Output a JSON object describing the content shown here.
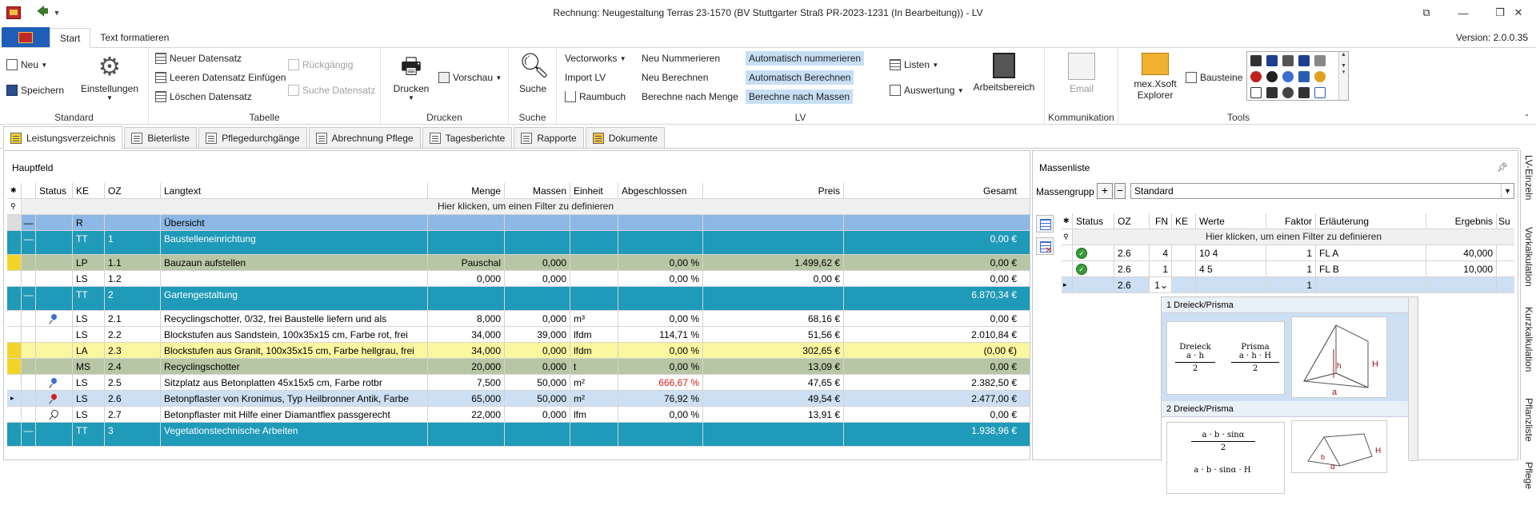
{
  "window": {
    "title": "Rechnung: Neugestaltung Terras 23-1570 (BV Stuttgarter Straß PR-2023-1231 (In Bearbeitung)) - LV",
    "version": "Version: 2.0.0.35"
  },
  "ribbon": {
    "tabs": [
      "Start",
      "Text formatieren"
    ],
    "groups": {
      "standard": {
        "label": "Standard",
        "neu": "Neu",
        "speichern": "Speichern",
        "einstellungen": "Einstellungen"
      },
      "tabelle": {
        "label": "Tabelle",
        "neuer": "Neuer Datensatz",
        "leeren": "Leeren Datensatz Einfügen",
        "loeschen": "Löschen Datensatz",
        "rueckgaengig": "Rückgängig",
        "suche_ds": "Suche Datensatz"
      },
      "drucken": {
        "label": "Drucken",
        "drucken": "Drucken",
        "vorschau": "Vorschau"
      },
      "suche": {
        "label": "Suche",
        "suche": "Suche"
      },
      "lv": {
        "label": "LV",
        "vectorworks": "Vectorworks",
        "import_lv": "Import LV",
        "raumbuch": "Raumbuch",
        "neu_nummerieren": "Neu Nummerieren",
        "neu_berechnen": "Neu Berechnen",
        "berechne_menge": "Berechne nach Menge",
        "auto_nummerieren": "Automatisch nummerieren",
        "auto_berechnen": "Automatisch Berechnen",
        "berechne_massen": "Berechne nach Massen",
        "listen": "Listen",
        "auswertung": "Auswertung",
        "arbeitsbereich": "Arbeitsbereich"
      },
      "kommunikation": {
        "label": "Kommunikation",
        "email": "Email"
      },
      "tools": {
        "label": "Tools",
        "explorer_1": "mex.Xsoft",
        "explorer_2": "Explorer",
        "bausteine": "Bausteine"
      }
    }
  },
  "doc_tabs": [
    "Leistungsverzeichnis",
    "Bieterliste",
    "Pflegedurchgänge",
    "Abrechnung Pflege",
    "Tagesberichte",
    "Rapporte",
    "Dokumente"
  ],
  "main": {
    "title": "Hauptfeld",
    "filter_hint": "Hier klicken, um einen Filter zu definieren",
    "columns": [
      "Status",
      "KE",
      "OZ",
      "Langtext",
      "Menge",
      "Massen",
      "Einheit",
      "Abgeschlossen",
      "Preis",
      "Gesamt"
    ],
    "rows": [
      {
        "ke": "R",
        "oz": "",
        "text": "Übersicht",
        "menge": "",
        "massen": "",
        "einheit": "",
        "abg": "",
        "preis": "",
        "gesamt": ""
      },
      {
        "ke": "TT",
        "oz": "1",
        "text": "Baustelleneinrichtung",
        "menge": "",
        "massen": "",
        "einheit": "",
        "abg": "",
        "preis": "",
        "gesamt": "0,00 €"
      },
      {
        "ke": "LP",
        "oz": "1.1",
        "text": "Bauzaun aufstellen",
        "menge": "Pauschal",
        "massen": "0,000",
        "einheit": "",
        "abg": "0,00 %",
        "preis": "1.499,62 €",
        "gesamt": "0,00 €"
      },
      {
        "ke": "LS",
        "oz": "1.2",
        "text": "",
        "menge": "0,000",
        "massen": "0,000",
        "einheit": "",
        "abg": "0,00 %",
        "preis": "0,00 €",
        "gesamt": "0,00 €"
      },
      {
        "ke": "TT",
        "oz": "2",
        "text": "Gartengestaltung",
        "menge": "",
        "massen": "",
        "einheit": "",
        "abg": "",
        "preis": "",
        "gesamt": "6.870,34 €"
      },
      {
        "ke": "LS",
        "oz": "2.1",
        "text": "Recyclingschotter, 0/32, frei Baustelle liefern und als",
        "menge": "8,000",
        "massen": "0,000",
        "einheit": "m³",
        "abg": "0,00 %",
        "preis": "68,16 €",
        "gesamt": "0,00 €"
      },
      {
        "ke": "LS",
        "oz": "2.2",
        "text": "Blockstufen aus Sandstein, 100x35x15 cm, Farbe rot, frei",
        "menge": "34,000",
        "massen": "39,000",
        "einheit": "lfdm",
        "abg": "114,71 %",
        "preis": "51,56 €",
        "gesamt": "2.010,84 €"
      },
      {
        "ke": "LA",
        "oz": "2.3",
        "text": "Blockstufen aus Granit, 100x35x15 cm, Farbe hellgrau, frei",
        "menge": "34,000",
        "massen": "0,000",
        "einheit": "lfdm",
        "abg": "0,00 %",
        "preis": "302,65 €",
        "gesamt": "(0,00 €)"
      },
      {
        "ke": "MS",
        "oz": "2.4",
        "text": "Recyclingschotter",
        "menge": "20,000",
        "massen": "0,000",
        "einheit": "t",
        "abg": "0,00 %",
        "preis": "13,09 €",
        "gesamt": "0,00 €"
      },
      {
        "ke": "LS",
        "oz": "2.5",
        "text": "Sitzplatz aus Betonplatten 45x15x5 cm, Farbe rotbr",
        "menge": "7,500",
        "massen": "50,000",
        "einheit": "m²",
        "abg": "666,67 %",
        "preis": "47,65 €",
        "gesamt": "2.382,50 €"
      },
      {
        "ke": "LS",
        "oz": "2.6",
        "text": "Betonpflaster von Kronimus, Typ Heilbronner Antik, Farbe",
        "menge": "65,000",
        "massen": "50,000",
        "einheit": "m²",
        "abg": "76,92 %",
        "preis": "49,54 €",
        "gesamt": "2.477,00 €"
      },
      {
        "ke": "LS",
        "oz": "2.7",
        "text": "Betonpflaster mit Hilfe einer Diamantflex passgerecht",
        "menge": "22,000",
        "massen": "0,000",
        "einheit": "lfm",
        "abg": "0,00 %",
        "preis": "13,91 €",
        "gesamt": "0,00 €"
      },
      {
        "ke": "TT",
        "oz": "3",
        "text": "Vegetationstechnische Arbeiten",
        "menge": "",
        "massen": "",
        "einheit": "",
        "abg": "",
        "preis": "",
        "gesamt": "1.938,96 €"
      }
    ]
  },
  "massenliste": {
    "title": "Massenliste",
    "group_label": "Massengrupp",
    "group_value": "Standard",
    "filter_hint": "Hier klicken, um einen Filter zu definieren",
    "columns": [
      "Status",
      "OZ",
      "FN",
      "KE",
      "Werte",
      "Faktor",
      "Erläuterung",
      "Ergebnis",
      "Su"
    ],
    "rows": [
      {
        "oz": "2.6",
        "fn": "4",
        "ke": "",
        "werte": "10 4",
        "faktor": "1",
        "erl": "FL A",
        "ergebnis": "40,000"
      },
      {
        "oz": "2.6",
        "fn": "1",
        "ke": "",
        "werte": "4 5",
        "faktor": "1",
        "erl": "FL B",
        "ergebnis": "10,000"
      },
      {
        "oz": "2.6",
        "fn": "1",
        "ke": "",
        "werte": "",
        "faktor": "1",
        "erl": "",
        "ergebnis": ""
      }
    ],
    "formulas": [
      {
        "head": "1 Dreieck/Prisma",
        "left_title": "Dreieck",
        "left_num": "a · h",
        "left_den": "2",
        "right_title": "Prisma",
        "right_num": "a · h · H",
        "right_den": "2",
        "fig_h": "h",
        "fig_H": "H",
        "fig_a": "a"
      },
      {
        "head": "2 Dreieck/Prisma",
        "top_num": "a · b · sinα",
        "top_den": "2",
        "bottom_num": "a · b · sinα · H",
        "fig_b": "b",
        "fig_H": "H",
        "fig_alpha": "α"
      }
    ]
  },
  "right_vtabs": [
    "LV-Einzeln",
    "Vorkalkulation",
    "Kurzkalkulation",
    "Pflanzliste",
    "Pflege"
  ]
}
